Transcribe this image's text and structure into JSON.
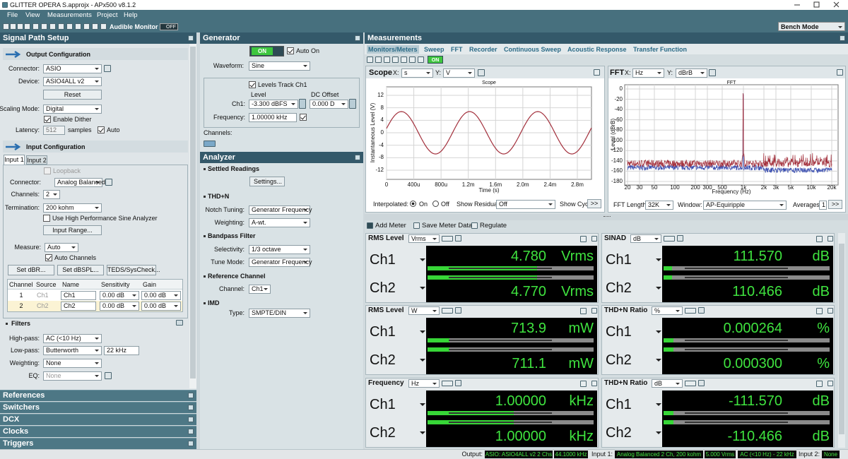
{
  "title_bar": {
    "title": "GLITTER OPERA S.approjx - APx500 v8.1.2"
  },
  "menu": [
    "File",
    "View",
    "Measurements",
    "Project",
    "Help"
  ],
  "toolbar": {
    "audible_monitor": "Audible Monitor",
    "monitor_state": "OFF",
    "mode": "Bench Mode"
  },
  "signal_path": {
    "title": "Signal Path Setup",
    "output": {
      "heading": "Output Configuration",
      "connector_label": "Connector:",
      "connector": "ASIO",
      "device_label": "Device:",
      "device": "ASIO4ALL v2",
      "reset": "Reset",
      "scaling_label": "Scaling Mode:",
      "scaling": "Digital",
      "dither": "Enable Dither",
      "latency_label": "Latency:",
      "latency": "512",
      "samples": "samples",
      "auto": "Auto"
    },
    "input": {
      "heading": "Input Configuration",
      "tabs": [
        "Input 1",
        "Input 2"
      ],
      "loopback": "Loopback",
      "connector_label": "Connector:",
      "connector": "Analog Balanced",
      "channels_label": "Channels:",
      "channels": "2",
      "termination_label": "Termination:",
      "termination": "200 kohm",
      "high_perf": "Use High Performance Sine Analyzer",
      "range": "Input Range...",
      "measure_label": "Measure:",
      "measure": "Auto",
      "auto_channels": "Auto Channels",
      "buttons": [
        "Set dBR...",
        "Set dBSPL...",
        "TEDS/SysCheck..."
      ],
      "table": {
        "columns": [
          "Channel",
          "Source",
          "Name",
          "Sensitivity",
          "Gain"
        ],
        "rows": [
          [
            "1",
            "Ch1",
            "Ch1",
            "0.00 dB",
            "0.00 dB"
          ],
          [
            "2",
            "Ch2",
            "Ch2",
            "0.00 dB",
            "0.00 dB"
          ]
        ]
      }
    },
    "filters": {
      "heading": "Filters",
      "highpass_label": "High-pass:",
      "highpass": "AC (<10 Hz)",
      "lowpass_label": "Low-pass:",
      "lowpass": "Butterworth",
      "lowpass_freq": "22 kHz",
      "weighting_label": "Weighting:",
      "weighting": "None",
      "eq_label": "EQ:",
      "eq": "None"
    },
    "sections": [
      "References",
      "Switchers",
      "DCX",
      "Clocks",
      "Triggers"
    ]
  },
  "generator": {
    "title": "Generator",
    "state": "ON",
    "auto_on": "Auto On",
    "waveform_label": "Waveform:",
    "waveform": "Sine",
    "levels_track": "Levels Track Ch1",
    "level_label": "Level",
    "dc_label": "DC Offset",
    "ch1_label": "Ch1:",
    "level": "-3.300 dBFS",
    "dc": "0.000 D",
    "frequency_label": "Frequency:",
    "frequency": "1.00000 kHz",
    "channels_label": "Channels:"
  },
  "analyzer": {
    "title": "Analyzer",
    "settled": "Settled Readings",
    "settings": "Settings...",
    "thdn": "THD+N",
    "notch_label": "Notch Tuning:",
    "notch": "Generator Frequency",
    "weighting_label": "Weighting:",
    "weighting": "A-wt.",
    "bandpass": "Bandpass Filter",
    "selectivity_label": "Selectivity:",
    "selectivity": "1/3 octave",
    "tune_label": "Tune Mode:",
    "tune": "Generator Frequency",
    "reference": "Reference Channel",
    "channel_label": "Channel:",
    "channel": "Ch1",
    "imd": "IMD",
    "type_label": "Type:",
    "type": "SMPTE/DIN"
  },
  "measurements": {
    "title": "Measurements",
    "tabs": [
      "Monitors/Meters",
      "Sweep",
      "FFT",
      "Recorder",
      "Continuous Sweep",
      "Acoustic Response",
      "Transfer Function"
    ],
    "state": "ON",
    "scope": {
      "title": "Scope",
      "x_label": "X:",
      "x_unit": "s",
      "y_label": "Y:",
      "y_unit": "V",
      "plot_title": "Scope",
      "y_axis": "Instantaneous Level (V)",
      "x_axis": "Time (s)",
      "yticks": [
        "12",
        "8",
        "4",
        "0",
        "-4",
        "-8",
        "-12"
      ],
      "xticks": [
        "0",
        "400u",
        "800u",
        "1.2m",
        "1.6m",
        "2.0m",
        "2.4m",
        "2.8m"
      ],
      "interpolated": "Interpolated:",
      "on": "On",
      "off": "Off",
      "show_residual": "Show Residual:",
      "residual": "Off",
      "show_cycle": "Show Cycl",
      "more": ">>"
    },
    "fft": {
      "title": "FFT",
      "x_label": "X:",
      "x_unit": "Hz",
      "y_label": "Y:",
      "y_unit": "dBrB",
      "plot_title": "FFT",
      "y_axis": "Level (dBrB)",
      "x_axis": "Frequency (Hz)",
      "yticks": [
        "0",
        "-20",
        "-40",
        "-60",
        "-80",
        "-100",
        "-120",
        "-140",
        "-160",
        "-180"
      ],
      "xticks": [
        "20",
        "30",
        "50",
        "100",
        "200",
        "300",
        "500",
        "1k",
        "2k",
        "3k",
        "5k",
        "10k",
        "20k"
      ],
      "length_label": "FFT Length:",
      "length": "32K",
      "window_label": "Window:",
      "window": "AP-Equiripple",
      "averages_label": "Averages:",
      "averages": "1",
      "more": ">>"
    },
    "toolbar": {
      "add_meter": "Add Meter",
      "save": "Save Meter Data",
      "regulate": "Regulate"
    },
    "meters": [
      {
        "title": "RMS Level",
        "unit": "Vrms",
        "channels": [
          {
            "name": "Ch1",
            "value": "4.780"
          },
          {
            "name": "Ch2",
            "value": "4.770"
          }
        ]
      },
      {
        "title": "SINAD",
        "unit": "dB",
        "channels": [
          {
            "name": "Ch1",
            "value": "111.570"
          },
          {
            "name": "Ch2",
            "value": "110.466"
          }
        ]
      },
      {
        "title": "RMS Level",
        "unit": "W",
        "channels": [
          {
            "name": "Ch1",
            "value": "713.9",
            "unit": "mW"
          },
          {
            "name": "Ch2",
            "value": "711.1",
            "unit": "mW"
          }
        ]
      },
      {
        "title": "THD+N Ratio",
        "unit": "%",
        "channels": [
          {
            "name": "Ch1",
            "value": "0.000264"
          },
          {
            "name": "Ch2",
            "value": "0.000300"
          }
        ]
      },
      {
        "title": "Frequency",
        "unit": "Hz",
        "channels": [
          {
            "name": "Ch1",
            "value": "1.00000",
            "unit": "kHz"
          },
          {
            "name": "Ch2",
            "value": "1.00000",
            "unit": "kHz"
          }
        ]
      },
      {
        "title": "THD+N Ratio",
        "unit": "dB",
        "channels": [
          {
            "name": "Ch1",
            "value": "-111.570"
          },
          {
            "name": "Ch2",
            "value": "-110.466"
          }
        ]
      }
    ]
  },
  "status": {
    "output_label": "Output:",
    "output": "ASIO: ASIO4ALL v2 2 Chs",
    "rate": "44.1000 kHz",
    "input1_label": "Input 1:",
    "input1": "Analog Balanced 2 Ch, 200 kohm",
    "range": "5.000 Vrms",
    "filter": "AC (<10 Hz) - 22 kHz",
    "input2_label": "Input 2:",
    "input2": "None"
  }
}
